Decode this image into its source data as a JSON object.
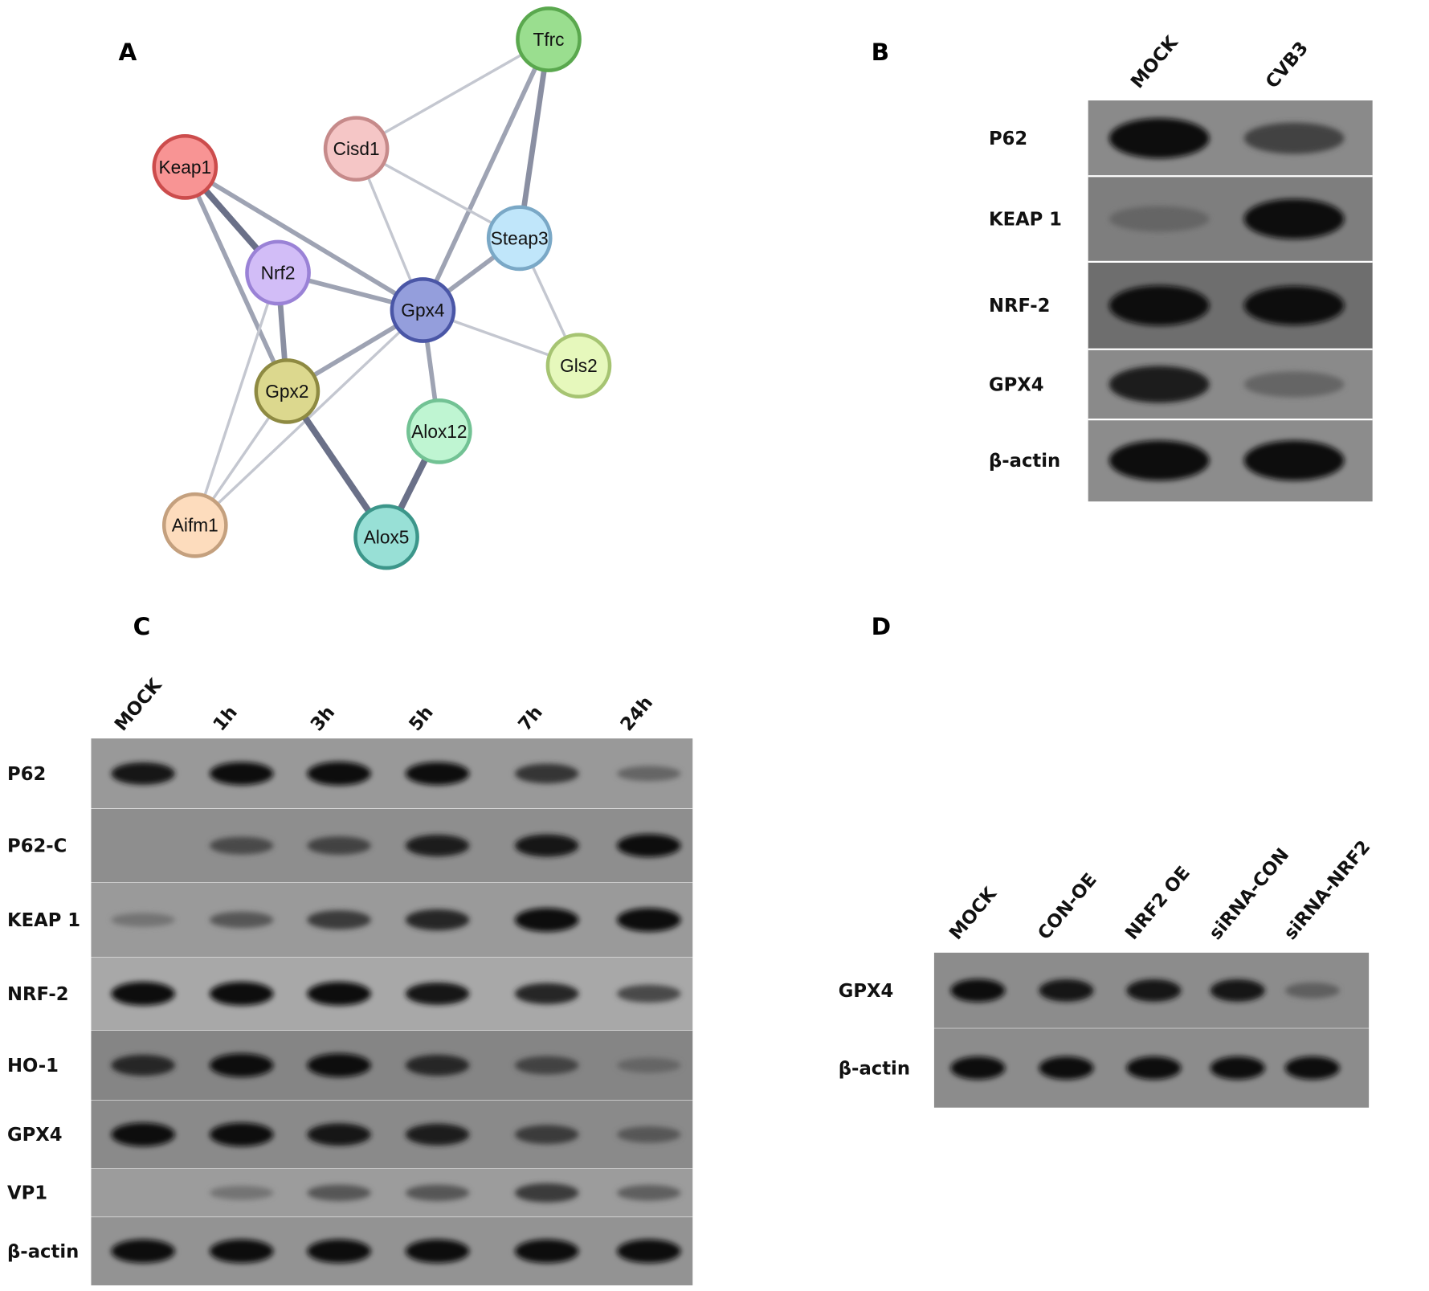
{
  "panels": {
    "A": {
      "letter": "A",
      "nodes": [
        {
          "id": "Tfrc",
          "label": "Tfrc",
          "fill": "#9ade8f",
          "stroke": "#5aa84e"
        },
        {
          "id": "Cisd1",
          "label": "Cisd1",
          "fill": "#f5c6c6",
          "stroke": "#c68a8a"
        },
        {
          "id": "Keap1",
          "label": "Keap1",
          "fill": "#f89494",
          "stroke": "#cc4c4c"
        },
        {
          "id": "Steap3",
          "label": "Steap3",
          "fill": "#c0e6fa",
          "stroke": "#7aa8c6"
        },
        {
          "id": "Nrf2",
          "label": "Nrf2",
          "fill": "#d2bdf7",
          "stroke": "#9a82d6"
        },
        {
          "id": "Gpx4",
          "label": "Gpx4",
          "fill": "#949edc",
          "stroke": "#4a56a6"
        },
        {
          "id": "Gls2",
          "label": "Gls2",
          "fill": "#e6f8bc",
          "stroke": "#a6c472"
        },
        {
          "id": "Gpx2",
          "label": "Gpx2",
          "fill": "#dcd88e",
          "stroke": "#8e8a42"
        },
        {
          "id": "Alox12",
          "label": "Alox12",
          "fill": "#bff5d2",
          "stroke": "#72c294"
        },
        {
          "id": "Aifm1",
          "label": "Aifm1",
          "fill": "#fddcbd",
          "stroke": "#c4a07e"
        },
        {
          "id": "Alox5",
          "label": "Alox5",
          "fill": "#98e0d6",
          "stroke": "#3c968a"
        }
      ],
      "edges": [
        {
          "from": "Tfrc",
          "to": "Cisd1",
          "strength": "weak"
        },
        {
          "from": "Tfrc",
          "to": "Steap3",
          "strength": "strong"
        },
        {
          "from": "Tfrc",
          "to": "Gpx4",
          "strength": "medium"
        },
        {
          "from": "Cisd1",
          "to": "Steap3",
          "strength": "weak"
        },
        {
          "from": "Cisd1",
          "to": "Gpx4",
          "strength": "weak"
        },
        {
          "from": "Keap1",
          "to": "Nrf2",
          "strength": "very-strong"
        },
        {
          "from": "Keap1",
          "to": "Gpx4",
          "strength": "medium"
        },
        {
          "from": "Keap1",
          "to": "Gpx2",
          "strength": "medium"
        },
        {
          "from": "Nrf2",
          "to": "Gpx4",
          "strength": "medium"
        },
        {
          "from": "Nrf2",
          "to": "Gpx2",
          "strength": "strong"
        },
        {
          "from": "Nrf2",
          "to": "Aifm1",
          "strength": "weak"
        },
        {
          "from": "Steap3",
          "to": "Gpx4",
          "strength": "medium"
        },
        {
          "from": "Steap3",
          "to": "Gls2",
          "strength": "weak"
        },
        {
          "from": "Gpx4",
          "to": "Gls2",
          "strength": "weak"
        },
        {
          "from": "Gpx4",
          "to": "Gpx2",
          "strength": "medium"
        },
        {
          "from": "Gpx4",
          "to": "Aifm1",
          "strength": "weak"
        },
        {
          "from": "Gpx4",
          "to": "Alox12",
          "strength": "medium"
        },
        {
          "from": "Gpx2",
          "to": "Aifm1",
          "strength": "weak"
        },
        {
          "from": "Gpx2",
          "to": "Alox5",
          "strength": "very-strong"
        },
        {
          "from": "Alox12",
          "to": "Alox5",
          "strength": "very-strong"
        }
      ]
    },
    "B": {
      "letter": "B",
      "lanes": [
        "MOCK",
        "CVB3"
      ],
      "rows": [
        {
          "label": "P62",
          "intensity": [
            1.0,
            0.6
          ]
        },
        {
          "label": "KEAP 1",
          "intensity": [
            0.35,
            1.0
          ]
        },
        {
          "label": "NRF-2",
          "intensity": [
            1.0,
            0.95
          ]
        },
        {
          "label": "GPX4",
          "intensity": [
            0.85,
            0.35
          ]
        },
        {
          "label": "β-actin",
          "intensity": [
            1.0,
            1.0
          ]
        }
      ]
    },
    "C": {
      "letter": "C",
      "lanes": [
        "MOCK",
        "1h",
        "3h",
        "5h",
        "7h",
        "24h"
      ],
      "rows": [
        {
          "label": "P62",
          "intensity": [
            0.9,
            0.95,
            1.0,
            0.95,
            0.7,
            0.35
          ]
        },
        {
          "label": "P62-C",
          "intensity": [
            0.0,
            0.55,
            0.6,
            0.85,
            0.9,
            0.95
          ]
        },
        {
          "label": "KEAP 1",
          "intensity": [
            0.25,
            0.45,
            0.65,
            0.8,
            1.0,
            1.0
          ]
        },
        {
          "label": "NRF-2",
          "intensity": [
            1.0,
            1.0,
            1.0,
            0.9,
            0.8,
            0.55
          ]
        },
        {
          "label": "HO-1",
          "intensity": [
            0.8,
            1.0,
            1.0,
            0.8,
            0.6,
            0.35
          ]
        },
        {
          "label": "GPX4",
          "intensity": [
            1.0,
            1.0,
            0.9,
            0.85,
            0.65,
            0.45
          ]
        },
        {
          "label": "VP1",
          "intensity": [
            0.0,
            0.25,
            0.45,
            0.45,
            0.65,
            0.4
          ]
        },
        {
          "label": "β-actin",
          "intensity": [
            1.0,
            1.0,
            1.0,
            1.0,
            1.0,
            1.0
          ]
        }
      ]
    },
    "D": {
      "letter": "D",
      "lanes": [
        "MOCK",
        "CON-OE",
        "NRF2 OE",
        "siRNA-CON",
        "siRNA-NRF2"
      ],
      "rows": [
        {
          "label": "GPX4",
          "intensity": [
            0.95,
            0.9,
            0.9,
            0.9,
            0.4
          ]
        },
        {
          "label": "β-actin",
          "intensity": [
            0.95,
            0.95,
            0.95,
            0.95,
            0.95
          ]
        }
      ]
    }
  }
}
